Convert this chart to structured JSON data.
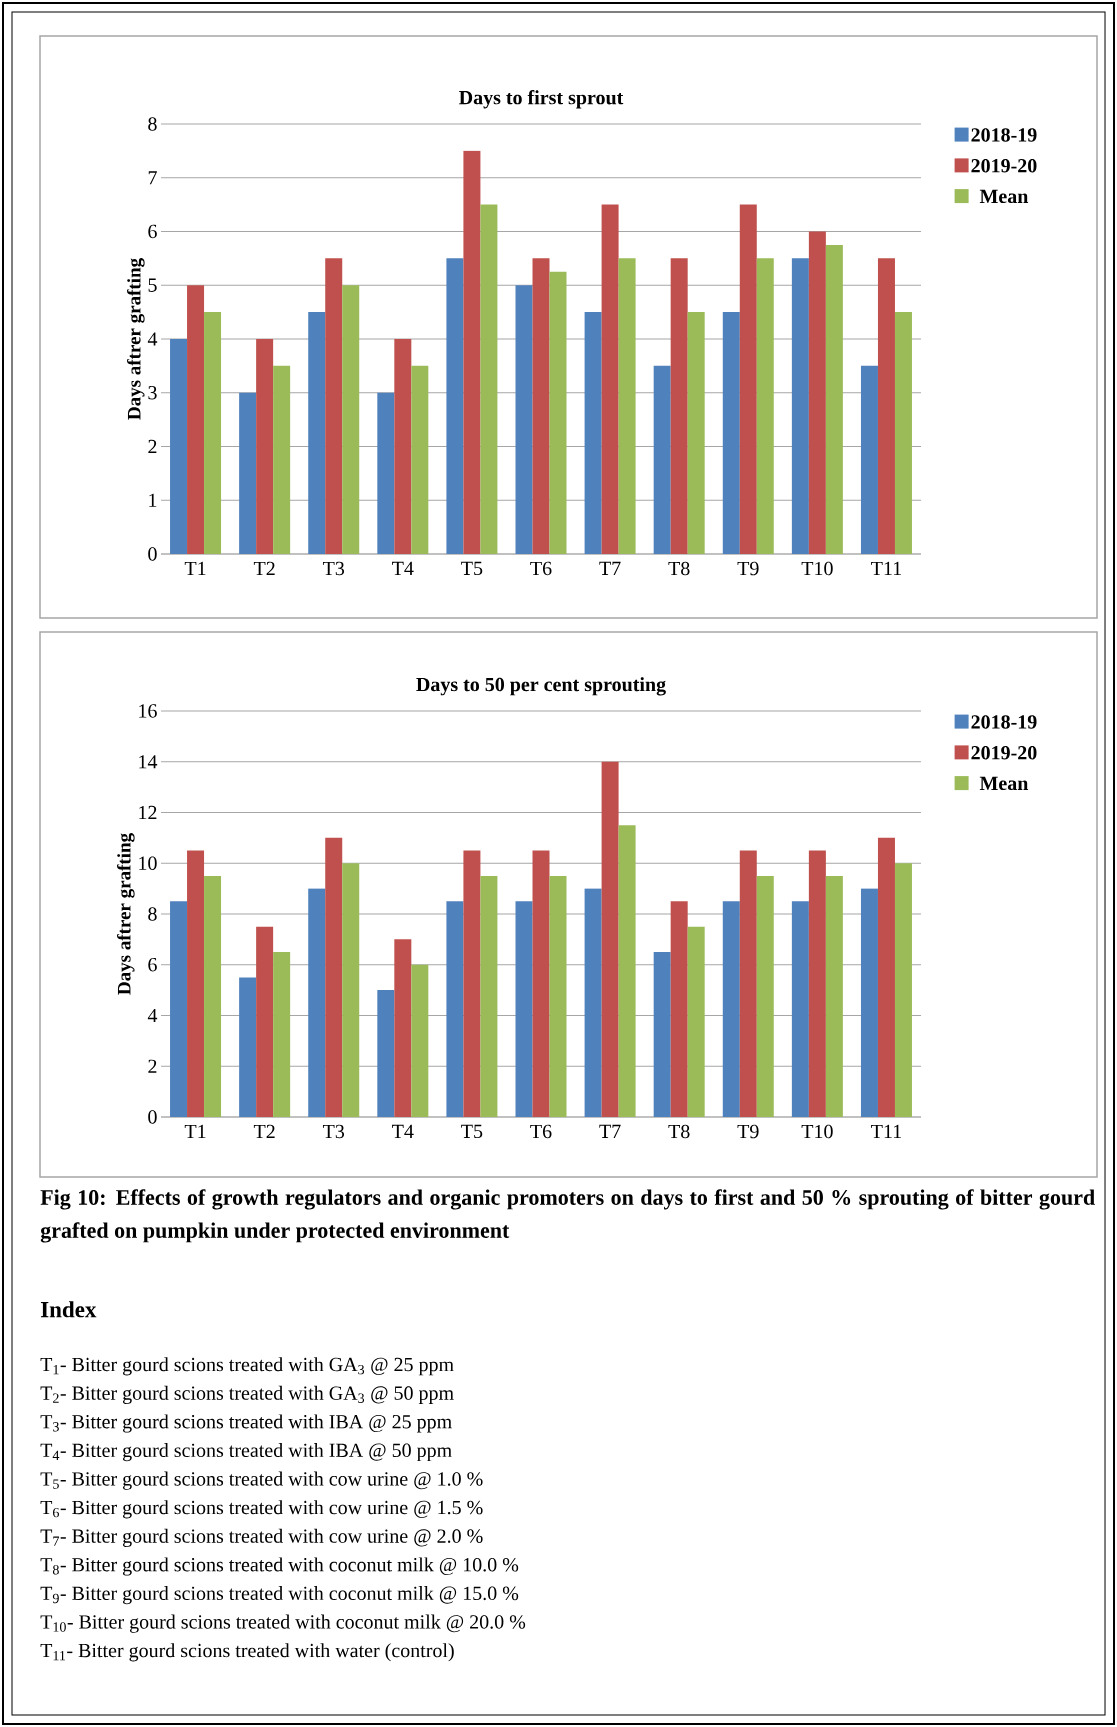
{
  "chart_data": [
    {
      "type": "bar",
      "title": "Days to first sprout",
      "ylabel": "Days aftrer grafting",
      "categories": [
        "T1",
        "T2",
        "T3",
        "T4",
        "T5",
        "T6",
        "T7",
        "T8",
        "T9",
        "T10",
        "T11"
      ],
      "series": [
        {
          "name": "2018-19",
          "color": "#4f81bd",
          "values": [
            4,
            3,
            4.5,
            3,
            5.5,
            5,
            4.5,
            3.5,
            4.5,
            5.5,
            3.5
          ]
        },
        {
          "name": "2019-20",
          "color": "#c0504d",
          "values": [
            5,
            4,
            5.5,
            4,
            7.5,
            5.5,
            6.5,
            5.5,
            6.5,
            6,
            5.5
          ]
        },
        {
          "name": "Mean",
          "color": "#9bbb59",
          "values": [
            4.5,
            3.5,
            5,
            3.5,
            6.5,
            5.25,
            5.5,
            4.5,
            5.5,
            5.75,
            4.5
          ]
        }
      ],
      "ylim": [
        0,
        8
      ],
      "yticks": [
        0,
        1,
        2,
        3,
        4,
        5,
        6,
        7,
        8
      ],
      "grid": "y",
      "legend": "right"
    },
    {
      "type": "bar",
      "title": "Days to 50 per cent sprouting",
      "ylabel": "Days aftrer grafting",
      "categories": [
        "T1",
        "T2",
        "T3",
        "T4",
        "T5",
        "T6",
        "T7",
        "T8",
        "T9",
        "T10",
        "T11"
      ],
      "series": [
        {
          "name": "2018-19",
          "color": "#4f81bd",
          "values": [
            8.5,
            5.5,
            9,
            5,
            8.5,
            8.5,
            9,
            6.5,
            8.5,
            8.5,
            9
          ]
        },
        {
          "name": "2019-20",
          "color": "#c0504d",
          "values": [
            10.5,
            7.5,
            11,
            7,
            10.5,
            10.5,
            14,
            8.5,
            10.5,
            10.5,
            11
          ]
        },
        {
          "name": "Mean",
          "color": "#9bbb59",
          "values": [
            9.5,
            6.5,
            10,
            6,
            9.5,
            9.5,
            11.5,
            7.5,
            9.5,
            9.5,
            10
          ]
        }
      ],
      "ylim": [
        0,
        16
      ],
      "yticks": [
        0,
        2,
        4,
        6,
        8,
        10,
        12,
        14,
        16
      ],
      "grid": "y",
      "legend": "right",
      "annotations": [
        "Fig 10: Effects of growth regulators and organic promoters on days to first and 50 % sprouting of bitter gourd grafted on pumpkin under protected environment",
        "Index",
        "T$_{1}$- Bitter gourd scions treated with GA$_{3}$ @ 25 ppm",
        "T$_{2}$- Bitter gourd scions treated with GA$_{3}$ @ 50 ppm",
        "T$_{3}$- Bitter gourd scions treated with IBA @ 25 ppm",
        "T$_{4}$- Bitter gourd scions treated with IBA @ 50 ppm",
        "T$_{5}$- Bitter gourd scions treated with cow urine @ 1.0 %",
        "T$_{6}$- Bitter gourd scions treated with cow urine @ 1.5 %",
        "T$_{7}$- Bitter gourd scions treated with cow urine @ 2.0 %",
        "T$_{8}$- Bitter gourd scions treated with coconut milk @ 10.0 %",
        "T$_{9}$- Bitter gourd scions treated with coconut milk @ 15.0 %",
        "T$_{10}$- Bitter gourd scions treated with coconut milk @ 20.0 %",
        "T$_{11}$- Bitter gourd scions treated with water (control)"
      ]
    }
  ]
}
